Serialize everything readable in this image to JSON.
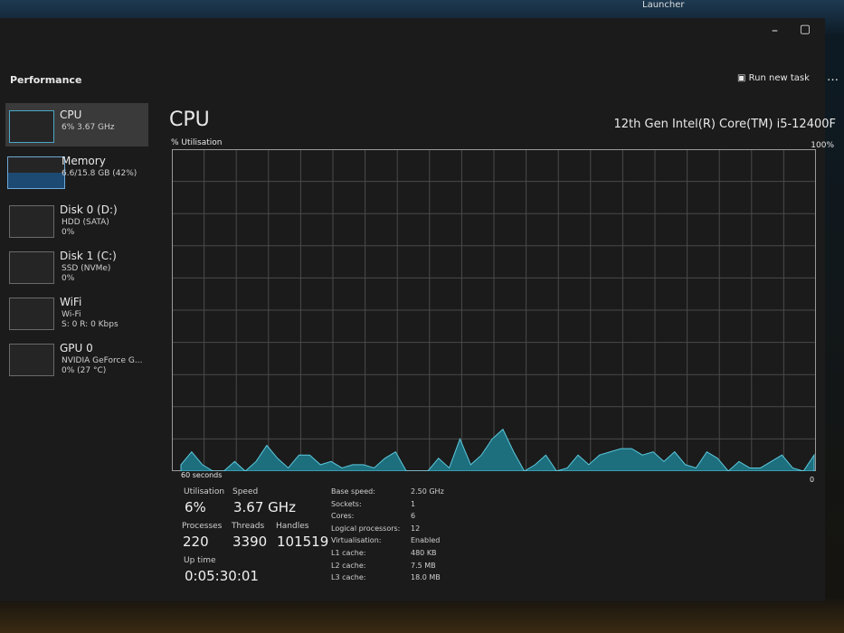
{
  "background_text": "Launcher",
  "header": {
    "title": "Performance",
    "run_new_task": "Run new task"
  },
  "sidebar": [
    {
      "name": "CPU",
      "lines": [
        "6% 3.67 GHz"
      ]
    },
    {
      "name": "Memory",
      "lines": [
        "6.6/15.8 GB (42%)"
      ]
    },
    {
      "name": "Disk 0 (D:)",
      "lines": [
        "HDD (SATA)",
        "0%"
      ]
    },
    {
      "name": "Disk 1 (C:)",
      "lines": [
        "SSD (NVMe)",
        "0%"
      ]
    },
    {
      "name": "WiFi",
      "lines": [
        "Wi-Fi",
        "S: 0 R: 0 Kbps"
      ]
    },
    {
      "name": "GPU 0",
      "lines": [
        "NVIDIA GeForce G...",
        "0% (27 °C)"
      ]
    }
  ],
  "cpu": {
    "title": "CPU",
    "model": "12th Gen Intel(R) Core(TM) i5-12400F",
    "y_label": "% Utilisation",
    "y_max_label": "100%",
    "x_left_label": "60 seconds",
    "x_right_label": "0",
    "ylim": [
      0,
      100
    ],
    "values": [
      2,
      6,
      2,
      0,
      0,
      3,
      0,
      3,
      8,
      4,
      1,
      5,
      5,
      2,
      3,
      1,
      2,
      2,
      1,
      4,
      6,
      0,
      0,
      0,
      4,
      1,
      10,
      2,
      5,
      10,
      13,
      6,
      0,
      2,
      5,
      0,
      1,
      5,
      2,
      5,
      6,
      7,
      7,
      5,
      6,
      3,
      6,
      2,
      1,
      6,
      4,
      0,
      3,
      1,
      1,
      3,
      5,
      1,
      0,
      5
    ]
  },
  "stats": {
    "big": [
      {
        "label": "Utilisation",
        "value": "6%"
      },
      {
        "label": "Speed",
        "value": "3.67 GHz"
      },
      {
        "label": "Processes",
        "value": "220"
      },
      {
        "label": "Threads",
        "value": "3390"
      },
      {
        "label": "Handles",
        "value": "101519"
      },
      {
        "label": "Up time",
        "value": "0:05:30:01"
      }
    ],
    "details": [
      [
        "Base speed:",
        "2.50 GHz"
      ],
      [
        "Sockets:",
        "1"
      ],
      [
        "Cores:",
        "6"
      ],
      [
        "Logical processors:",
        "12"
      ],
      [
        "Virtualisation:",
        "Enabled"
      ],
      [
        "L1 cache:",
        "480 KB"
      ],
      [
        "L2 cache:",
        "7.5 MB"
      ],
      [
        "L3 cache:",
        "18.0 MB"
      ]
    ]
  }
}
